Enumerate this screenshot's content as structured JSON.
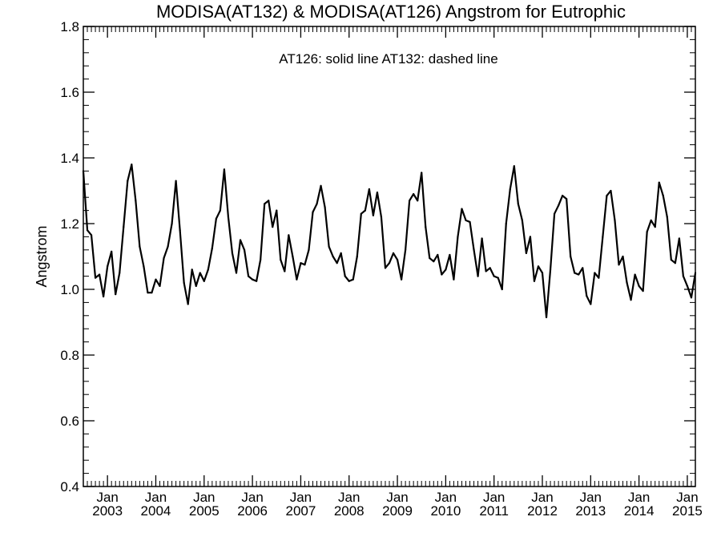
{
  "chart_data": {
    "type": "line",
    "title": "MODISA(AT132) & MODISA(AT126)  Angstrom for Eutrophic",
    "annotation": "AT126: solid line   AT132: dashed line",
    "xlabel": "",
    "ylabel": "Angstrom",
    "ylim": [
      0.4,
      1.8
    ],
    "yticks": [
      "0.4",
      "0.6",
      "0.8",
      "1.0",
      "1.2",
      "1.4",
      "1.6",
      "1.8"
    ],
    "xlim": [
      "2002-07",
      "2015-03"
    ],
    "xticks": [
      {
        "month": "Jan",
        "year": "2003",
        "date": "2003-01"
      },
      {
        "month": "Jan",
        "year": "2004",
        "date": "2004-01"
      },
      {
        "month": "Jan",
        "year": "2005",
        "date": "2005-01"
      },
      {
        "month": "Jan",
        "year": "2006",
        "date": "2006-01"
      },
      {
        "month": "Jan",
        "year": "2007",
        "date": "2007-01"
      },
      {
        "month": "Jan",
        "year": "2008",
        "date": "2008-01"
      },
      {
        "month": "Jan",
        "year": "2009",
        "date": "2009-01"
      },
      {
        "month": "Jan",
        "year": "2010",
        "date": "2010-01"
      },
      {
        "month": "Jan",
        "year": "2011",
        "date": "2011-01"
      },
      {
        "month": "Jan",
        "year": "2012",
        "date": "2012-01"
      },
      {
        "month": "Jan",
        "year": "2013",
        "date": "2013-01"
      },
      {
        "month": "Jan",
        "year": "2014",
        "date": "2014-01"
      },
      {
        "month": "Jan",
        "year": "2015",
        "date": "2015-01"
      }
    ],
    "grid": false,
    "legend": "none",
    "series": [
      {
        "line_style": "solid",
        "color": "#000000",
        "x": [
          "2002-07",
          "2002-08",
          "2002-09",
          "2002-10",
          "2002-11",
          "2002-12",
          "2003-01",
          "2003-02",
          "2003-03",
          "2003-04",
          "2003-05",
          "2003-06",
          "2003-07",
          "2003-08",
          "2003-09",
          "2003-10",
          "2003-11",
          "2003-12",
          "2004-01",
          "2004-02",
          "2004-03",
          "2004-04",
          "2004-05",
          "2004-06",
          "2004-07",
          "2004-08",
          "2004-09",
          "2004-10",
          "2004-11",
          "2004-12",
          "2005-01",
          "2005-02",
          "2005-03",
          "2005-04",
          "2005-05",
          "2005-06",
          "2005-07",
          "2005-08",
          "2005-09",
          "2005-10",
          "2005-11",
          "2005-12",
          "2006-01",
          "2006-02",
          "2006-03",
          "2006-04",
          "2006-05",
          "2006-06",
          "2006-07",
          "2006-08",
          "2006-09",
          "2006-10",
          "2006-11",
          "2006-12",
          "2007-01",
          "2007-02",
          "2007-03",
          "2007-04",
          "2007-05",
          "2007-06",
          "2007-07",
          "2007-08",
          "2007-09",
          "2007-10",
          "2007-11",
          "2007-12",
          "2008-01",
          "2008-02",
          "2008-03",
          "2008-04",
          "2008-05",
          "2008-06",
          "2008-07",
          "2008-08",
          "2008-09",
          "2008-10",
          "2008-11",
          "2008-12",
          "2009-01",
          "2009-02",
          "2009-03",
          "2009-04",
          "2009-05",
          "2009-06",
          "2009-07",
          "2009-08",
          "2009-09",
          "2009-10",
          "2009-11",
          "2009-12",
          "2010-01",
          "2010-02",
          "2010-03",
          "2010-04",
          "2010-05",
          "2010-06",
          "2010-07",
          "2010-08",
          "2010-09",
          "2010-10",
          "2010-11",
          "2010-12",
          "2011-01",
          "2011-02",
          "2011-03",
          "2011-04",
          "2011-05",
          "2011-06",
          "2011-07",
          "2011-08",
          "2011-09",
          "2011-10",
          "2011-11",
          "2011-12",
          "2012-01",
          "2012-02",
          "2012-03",
          "2012-04",
          "2012-05",
          "2012-06",
          "2012-07",
          "2012-08",
          "2012-09",
          "2012-10",
          "2012-11",
          "2012-12",
          "2013-01",
          "2013-02",
          "2013-03",
          "2013-04",
          "2013-05",
          "2013-06",
          "2013-07",
          "2013-08",
          "2013-09",
          "2013-10",
          "2013-11",
          "2013-12",
          "2014-01",
          "2014-02",
          "2014-03",
          "2014-04",
          "2014-05",
          "2014-06",
          "2014-07",
          "2014-08",
          "2014-09",
          "2014-10",
          "2014-11",
          "2014-12",
          "2015-01",
          "2015-02",
          "2015-03"
        ],
        "y": [
          1.36,
          1.18,
          1.165,
          1.035,
          1.045,
          0.978,
          1.07,
          1.115,
          0.985,
          1.05,
          1.19,
          1.33,
          1.38,
          1.27,
          1.13,
          1.07,
          0.99,
          0.99,
          1.03,
          1.01,
          1.095,
          1.13,
          1.2,
          1.33,
          1.18,
          1.02,
          0.955,
          1.06,
          1.01,
          1.05,
          1.025,
          1.06,
          1.125,
          1.215,
          1.24,
          1.365,
          1.22,
          1.11,
          1.05,
          1.15,
          1.12,
          1.04,
          1.03,
          1.025,
          1.09,
          1.26,
          1.27,
          1.19,
          1.24,
          1.09,
          1.055,
          1.165,
          1.1,
          1.03,
          1.08,
          1.075,
          1.12,
          1.235,
          1.26,
          1.315,
          1.25,
          1.13,
          1.1,
          1.08,
          1.11,
          1.04,
          1.025,
          1.03,
          1.1,
          1.23,
          1.24,
          1.305,
          1.225,
          1.295,
          1.22,
          1.065,
          1.08,
          1.11,
          1.09,
          1.03,
          1.12,
          1.27,
          1.29,
          1.27,
          1.355,
          1.19,
          1.095,
          1.085,
          1.105,
          1.045,
          1.06,
          1.105,
          1.03,
          1.16,
          1.245,
          1.21,
          1.205,
          1.12,
          1.04,
          1.155,
          1.055,
          1.065,
          1.04,
          1.035,
          1.0,
          1.2,
          1.305,
          1.375,
          1.26,
          1.21,
          1.11,
          1.16,
          1.025,
          1.07,
          1.05,
          0.915,
          1.06,
          1.23,
          1.255,
          1.285,
          1.275,
          1.1,
          1.05,
          1.045,
          1.065,
          0.98,
          0.955,
          1.05,
          1.035,
          1.16,
          1.285,
          1.3,
          1.21,
          1.075,
          1.1,
          1.02,
          0.968,
          1.045,
          1.01,
          0.995,
          1.175,
          1.21,
          1.19,
          1.325,
          1.285,
          1.22,
          1.09,
          1.08,
          1.155,
          1.04,
          1.01,
          0.975,
          1.05
        ]
      }
    ]
  }
}
